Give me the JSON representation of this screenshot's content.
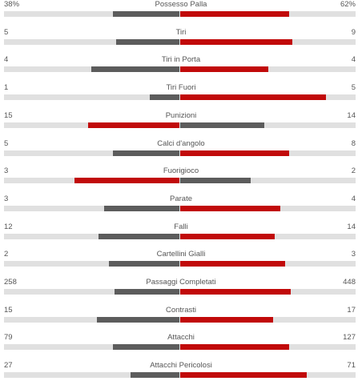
{
  "colors": {
    "track": "#e0e0e0",
    "lead": "#c10a0a",
    "trail": "#5c5c5c"
  },
  "stats": [
    {
      "name": "Possesso Palla",
      "home": "38%",
      "away": "62%",
      "home_fill": 0.38,
      "away_fill": 0.62
    },
    {
      "name": "Tiri",
      "home": "5",
      "away": "9",
      "home_fill": 0.36,
      "away_fill": 0.64
    },
    {
      "name": "Tiri in Porta",
      "home": "4",
      "away": "4",
      "home_fill": 0.5,
      "away_fill": 0.5
    },
    {
      "name": "Tiri Fuori",
      "home": "1",
      "away": "5",
      "home_fill": 0.17,
      "away_fill": 0.83
    },
    {
      "name": "Punizioni",
      "home": "15",
      "away": "14",
      "home_fill": 0.52,
      "away_fill": 0.48
    },
    {
      "name": "Calci d'angolo",
      "home": "5",
      "away": "8",
      "home_fill": 0.38,
      "away_fill": 0.62
    },
    {
      "name": "Fuorigioco",
      "home": "3",
      "away": "2",
      "home_fill": 0.6,
      "away_fill": 0.4
    },
    {
      "name": "Parate",
      "home": "3",
      "away": "4",
      "home_fill": 0.43,
      "away_fill": 0.57
    },
    {
      "name": "Falli",
      "home": "12",
      "away": "14",
      "home_fill": 0.46,
      "away_fill": 0.54
    },
    {
      "name": "Cartellini Gialli",
      "home": "2",
      "away": "3",
      "home_fill": 0.4,
      "away_fill": 0.6
    },
    {
      "name": "Passaggi Completati",
      "home": "258",
      "away": "448",
      "home_fill": 0.37,
      "away_fill": 0.63
    },
    {
      "name": "Contrasti",
      "home": "15",
      "away": "17",
      "home_fill": 0.47,
      "away_fill": 0.53
    },
    {
      "name": "Attacchi",
      "home": "79",
      "away": "127",
      "home_fill": 0.38,
      "away_fill": 0.62
    },
    {
      "name": "Attacchi Pericolosi",
      "home": "27",
      "away": "71",
      "home_fill": 0.28,
      "away_fill": 0.72
    }
  ]
}
